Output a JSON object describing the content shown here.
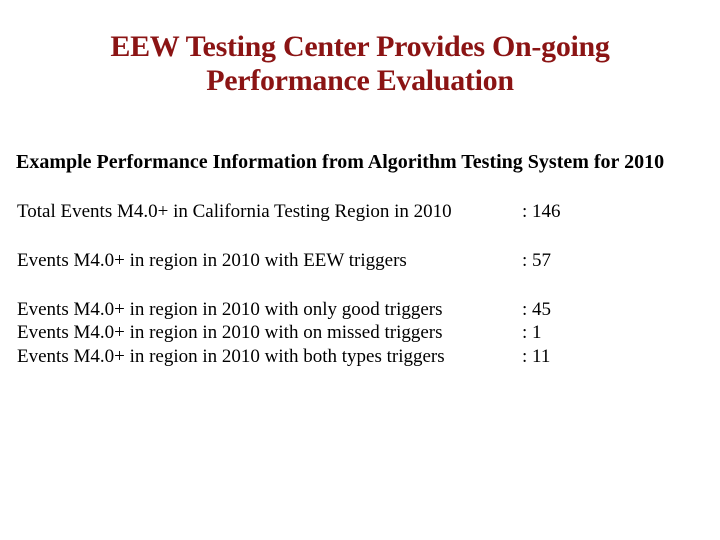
{
  "slide": {
    "title": {
      "line1": "EEW Testing Center Provides On-going",
      "line2": "Performance Evaluation"
    },
    "subtitle": "Example Performance Information from Algorithm Testing System for 2010",
    "stats": {
      "rows": [
        {
          "label": "Total Events M4.0+ in California Testing Region in 2010",
          "value": ": 146"
        },
        {
          "label": "Events M4.0+ in region in 2010 with EEW triggers",
          "value": ": 57"
        },
        {
          "label": "Events M4.0+ in region in 2010 with only good triggers",
          "value": ": 45"
        },
        {
          "label": "Events M4.0+ in region in 2010 with on missed triggers",
          "value": ": 1"
        },
        {
          "label": "Events M4.0+ in region in 2010 with both types triggers",
          "value": ": 11"
        }
      ]
    },
    "colors": {
      "title_text": "#8b1414",
      "body_text": "#000000",
      "background": "#ffffff"
    }
  }
}
